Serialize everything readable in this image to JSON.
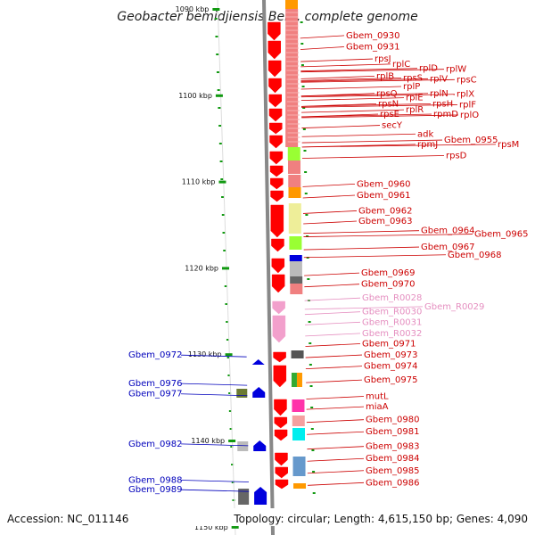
{
  "title": "Geobacter bemidjiensis Bem, complete genome",
  "footer": {
    "accession": "Accession: NC_011146",
    "topology": "Topology: circular; Length: 4,615,150 bp; Genes: 4,090"
  },
  "colors": {
    "forward_label": "#cc0000",
    "forward_gene": "#ff0000",
    "rna_label": "#e58fc0",
    "rna_gene": "#f2a0cc",
    "reverse_label": "#0000bb",
    "reverse_gene": "#0000dd",
    "tick": "#119911",
    "backbone": "#888888"
  },
  "kbp_marks": [
    {
      "label": "1090 kbp",
      "pos": 1090
    },
    {
      "label": "1100 kbp",
      "pos": 1100
    },
    {
      "label": "1110 kbp",
      "pos": 1110
    },
    {
      "label": "1120 kbp",
      "pos": 1120
    },
    {
      "label": "1130 kbp",
      "pos": 1130
    },
    {
      "label": "1140 kbp",
      "pos": 1140
    },
    {
      "label": "1150 kbp",
      "pos": 1150
    }
  ],
  "forward_labels": [
    {
      "text": "Gbem_0930",
      "type": "gene",
      "pos": 1093.4
    },
    {
      "text": "Gbem_0931",
      "type": "gene",
      "pos": 1094.7
    },
    {
      "text": "rpsJ",
      "type": "gene",
      "pos": 1096.1
    },
    {
      "text": "rplC",
      "type": "gene",
      "pos": 1096.7
    },
    {
      "text": "rplD",
      "type": "gene",
      "pos": 1097.2
    },
    {
      "text": "rplW",
      "type": "gene",
      "pos": 1097.3
    },
    {
      "text": "rplB",
      "type": "gene",
      "pos": 1098.1
    },
    {
      "text": "rpsS",
      "type": "gene",
      "pos": 1098.3
    },
    {
      "text": "rplV",
      "type": "gene",
      "pos": 1098.4
    },
    {
      "text": "rpsC",
      "type": "gene",
      "pos": 1098.5
    },
    {
      "text": "rplP",
      "type": "gene",
      "pos": 1099.3
    },
    {
      "text": "rpsQ",
      "type": "gene",
      "pos": 1100.1
    },
    {
      "text": "rplN",
      "type": "gene",
      "pos": 1100.1
    },
    {
      "text": "rplX",
      "type": "gene",
      "pos": 1100.2
    },
    {
      "text": "rplE",
      "type": "gene",
      "pos": 1100.6
    },
    {
      "text": "rpsN",
      "type": "gene",
      "pos": 1101.3
    },
    {
      "text": "rpsH",
      "type": "gene",
      "pos": 1101.3
    },
    {
      "text": "rplF",
      "type": "gene",
      "pos": 1101.4
    },
    {
      "text": "rplR",
      "type": "gene",
      "pos": 1102.0
    },
    {
      "text": "rpsE",
      "type": "gene",
      "pos": 1102.5
    },
    {
      "text": "rpmD",
      "type": "gene",
      "pos": 1102.5
    },
    {
      "text": "rplO",
      "type": "gene",
      "pos": 1102.6
    },
    {
      "text": "secY",
      "type": "gene",
      "pos": 1103.8
    },
    {
      "text": "adk",
      "type": "gene",
      "pos": 1104.8
    },
    {
      "text": "rpmJ",
      "type": "gene",
      "pos": 1106.0
    },
    {
      "text": "Gbem_0955",
      "type": "gene",
      "pos": 1105.5
    },
    {
      "text": "rpsM",
      "type": "gene",
      "pos": 1106.0
    },
    {
      "text": "rpsD",
      "type": "gene",
      "pos": 1107.3
    },
    {
      "text": "Gbem_0960",
      "type": "gene",
      "pos": 1110.6
    },
    {
      "text": "Gbem_0961",
      "type": "gene",
      "pos": 1111.9
    },
    {
      "text": "Gbem_0962",
      "type": "gene",
      "pos": 1113.7
    },
    {
      "text": "Gbem_0963",
      "type": "gene",
      "pos": 1114.9
    },
    {
      "text": "Gbem_0964",
      "type": "gene",
      "pos": 1116.0
    },
    {
      "text": "Gbem_0965",
      "type": "gene",
      "pos": 1116.4
    },
    {
      "text": "Gbem_0967",
      "type": "gene",
      "pos": 1117.9
    },
    {
      "text": "Gbem_0968",
      "type": "gene",
      "pos": 1118.8
    },
    {
      "text": "Gbem_0969",
      "type": "gene",
      "pos": 1120.9
    },
    {
      "text": "Gbem_0970",
      "type": "gene",
      "pos": 1122.2
    },
    {
      "text": "Gbem_R0028",
      "type": "rna",
      "pos": 1123.8
    },
    {
      "text": "Gbem_R0029",
      "type": "rna",
      "pos": 1124.8
    },
    {
      "text": "Gbem_R0030",
      "type": "rna",
      "pos": 1125.4
    },
    {
      "text": "Gbem_R0031",
      "type": "rna",
      "pos": 1126.6
    },
    {
      "text": "Gbem_R0032",
      "type": "rna",
      "pos": 1127.9
    },
    {
      "text": "Gbem_0971",
      "type": "gene",
      "pos": 1129.1
    },
    {
      "text": "Gbem_0973",
      "type": "gene",
      "pos": 1130.4
    },
    {
      "text": "Gbem_0974",
      "type": "gene",
      "pos": 1131.7
    },
    {
      "text": "Gbem_0975",
      "type": "gene",
      "pos": 1133.3
    },
    {
      "text": "mutL",
      "type": "gene",
      "pos": 1135.2
    },
    {
      "text": "miaA",
      "type": "gene",
      "pos": 1136.4
    },
    {
      "text": "Gbem_0980",
      "type": "gene",
      "pos": 1137.9
    },
    {
      "text": "Gbem_0981",
      "type": "gene",
      "pos": 1139.3
    },
    {
      "text": "Gbem_0983",
      "type": "gene",
      "pos": 1141.0
    },
    {
      "text": "Gbem_0984",
      "type": "gene",
      "pos": 1142.4
    },
    {
      "text": "Gbem_0985",
      "type": "gene",
      "pos": 1143.8
    },
    {
      "text": "Gbem_0986",
      "type": "gene",
      "pos": 1145.2
    }
  ],
  "reverse_labels": [
    {
      "text": "Gbem_0972",
      "pos": 1130.1
    },
    {
      "text": "Gbem_0976",
      "pos": 1133.4
    },
    {
      "text": "Gbem_0977",
      "pos": 1134.6
    },
    {
      "text": "Gbem_0982",
      "pos": 1140.4
    },
    {
      "text": "Gbem_0988",
      "pos": 1144.6
    },
    {
      "text": "Gbem_0989",
      "pos": 1145.7
    }
  ]
}
